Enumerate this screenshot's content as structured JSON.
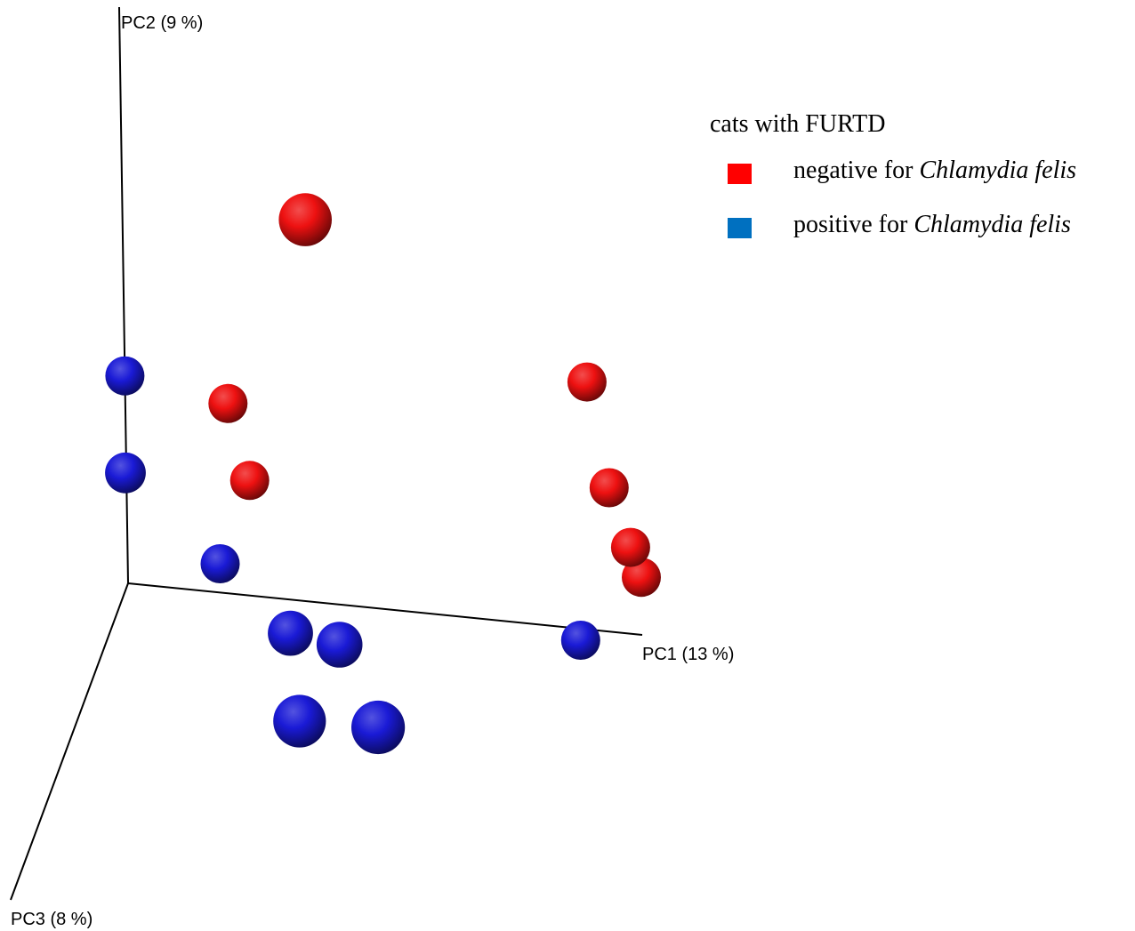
{
  "chart_data": {
    "type": "scatter",
    "title": "",
    "axes": {
      "pc1_label": "PC1 (13 %)",
      "pc2_label": "PC2 (9 %)",
      "pc3_label": "PC3 (8 %)"
    },
    "legend": {
      "title": "cats with FURTD",
      "placement": "top-right",
      "entries": [
        {
          "id": "negative",
          "prefix": "negative for ",
          "italic": "Chlamydia felis",
          "color": "#ee1111",
          "swatch_color": "#ff0000"
        },
        {
          "id": "positive",
          "prefix": "positive for ",
          "italic": "Chlamydia felis",
          "color": "#1a1ad6",
          "swatch_color": "#0070c0"
        }
      ]
    },
    "series": [
      {
        "name": "negative for Chlamydia felis",
        "color": "#ee1111",
        "points": [
          {
            "pc1": 0.38,
            "pc2": 0.72,
            "pc3": 0.1
          },
          {
            "pc1": 0.2,
            "pc2": 0.33,
            "pc3": 0.0
          },
          {
            "pc1": 0.24,
            "pc2": 0.2,
            "pc3": 0.0
          },
          {
            "pc1": 0.9,
            "pc2": 0.43,
            "pc3": 0.0
          },
          {
            "pc1": 0.94,
            "pc2": 0.25,
            "pc3": 0.0
          },
          {
            "pc1": 0.98,
            "pc2": 0.15,
            "pc3": 0.0
          },
          {
            "pc1": 1.0,
            "pc2": 0.1,
            "pc3": 0.0
          }
        ]
      },
      {
        "name": "positive for Chlamydia felis",
        "color": "#1a1ad6",
        "points": [
          {
            "pc1": 0.0,
            "pc2": 0.36,
            "pc3": 0.0
          },
          {
            "pc1": 0.01,
            "pc2": 0.22,
            "pc3": 0.05
          },
          {
            "pc1": 0.18,
            "pc2": 0.05,
            "pc3": 0.0
          },
          {
            "pc1": 0.88,
            "pc2": -0.02,
            "pc3": 0.0
          },
          {
            "pc1": 0.36,
            "pc2": 0.05,
            "pc3": 0.19
          },
          {
            "pc1": 0.46,
            "pc2": 0.05,
            "pc3": 0.21
          },
          {
            "pc1": 0.43,
            "pc2": 0.03,
            "pc3": 0.42
          },
          {
            "pc1": 0.59,
            "pc2": 0.05,
            "pc3": 0.45
          }
        ]
      }
    ]
  }
}
